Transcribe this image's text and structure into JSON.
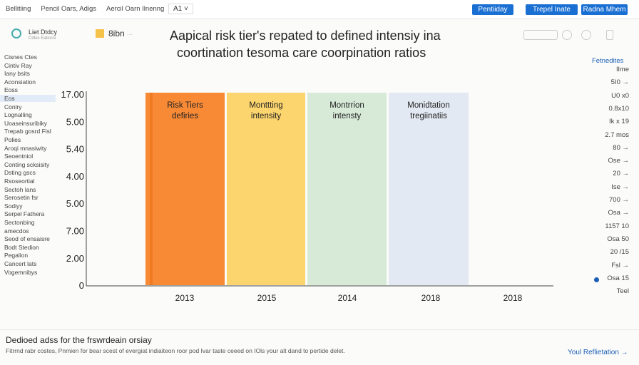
{
  "topbar": {
    "breadcrumbs": [
      "Bellitiing",
      "Pencil Oars, Adigs",
      "Aercil Oarn Ilnenng"
    ],
    "dropdown": "A1",
    "buttons": [
      "Pentiiday",
      "Trepel Inate",
      "Radna Mhem"
    ]
  },
  "sidebar": {
    "logo": "Liet Dtdcy",
    "logo_sub": "Cdtes Eatiocsi",
    "items": [
      "Cisnes Ctes",
      "Cintiv Ray",
      "Iany bsits",
      "Aconsiation",
      "Eoss",
      "Eos",
      "Conlry",
      "Lognalling",
      "Uoaseinsuribiky",
      "Trepab gosrd Fisl",
      "Polies",
      "Aroqi mnasiwity",
      "Seoentniol",
      "Conting scksisity",
      "Dsting gscs",
      "Rsoseortial",
      "Sectoh lans",
      "Serosetin fsr",
      "Sodiyy",
      "Serpel Fathera",
      "Sectonbing",
      "amecdos",
      "Seod of ensaisre",
      "Bodt Stedion",
      "Pegalion",
      "Cancert lats",
      "Vogemnibys"
    ],
    "selected_index": 5
  },
  "header": {
    "badge": "8ibn",
    "badge_sub": "···",
    "title": [
      "Aapical risk tier's repated to defined intensiy ina",
      "coortination tesoma care coorpination ratios"
    ]
  },
  "chart": {
    "y_labels": [
      "17.00",
      "5.00",
      "5.40",
      "4.00",
      "5.00",
      "7.00",
      "2.00",
      "0"
    ],
    "x_labels": [
      "2013",
      "2015",
      "2014",
      "2018",
      "2018"
    ],
    "bars": [
      {
        "label": [
          "Risk Tiers",
          "defiries"
        ],
        "color": "#f88a36"
      },
      {
        "label": [
          "Monttting",
          "intensity"
        ],
        "color": "#fcd56e"
      },
      {
        "label": [
          "Montrrion",
          "intensty"
        ],
        "color": "#d7ead8"
      },
      {
        "label": [
          "Monidtation",
          "tregiinatiis"
        ],
        "color": "#e3e9f2"
      }
    ]
  },
  "right_panel": {
    "title": "Fetnedites",
    "items": [
      "Ilme",
      "5I0 →",
      "U0 x0",
      "0.8x10",
      "Ik x 19",
      "2.7 mos",
      "80 →",
      "Ose →",
      "20 →",
      "Ise →",
      "700 →",
      "Osa →",
      "1157 10",
      "Osa 50",
      "20 /15",
      "Fsl →",
      "Osa 15",
      "Teel"
    ]
  },
  "footer": {
    "title": "Dedioed adss for the frswrdeain orsiay",
    "text": "Fitrrnd rabr costes, Pnmien for bear scest of evergiat indiaiteon roor pod Ivar taste ceeed on IOls your alt dand to pertide delet.",
    "link": "Youl Reflietation →"
  }
}
